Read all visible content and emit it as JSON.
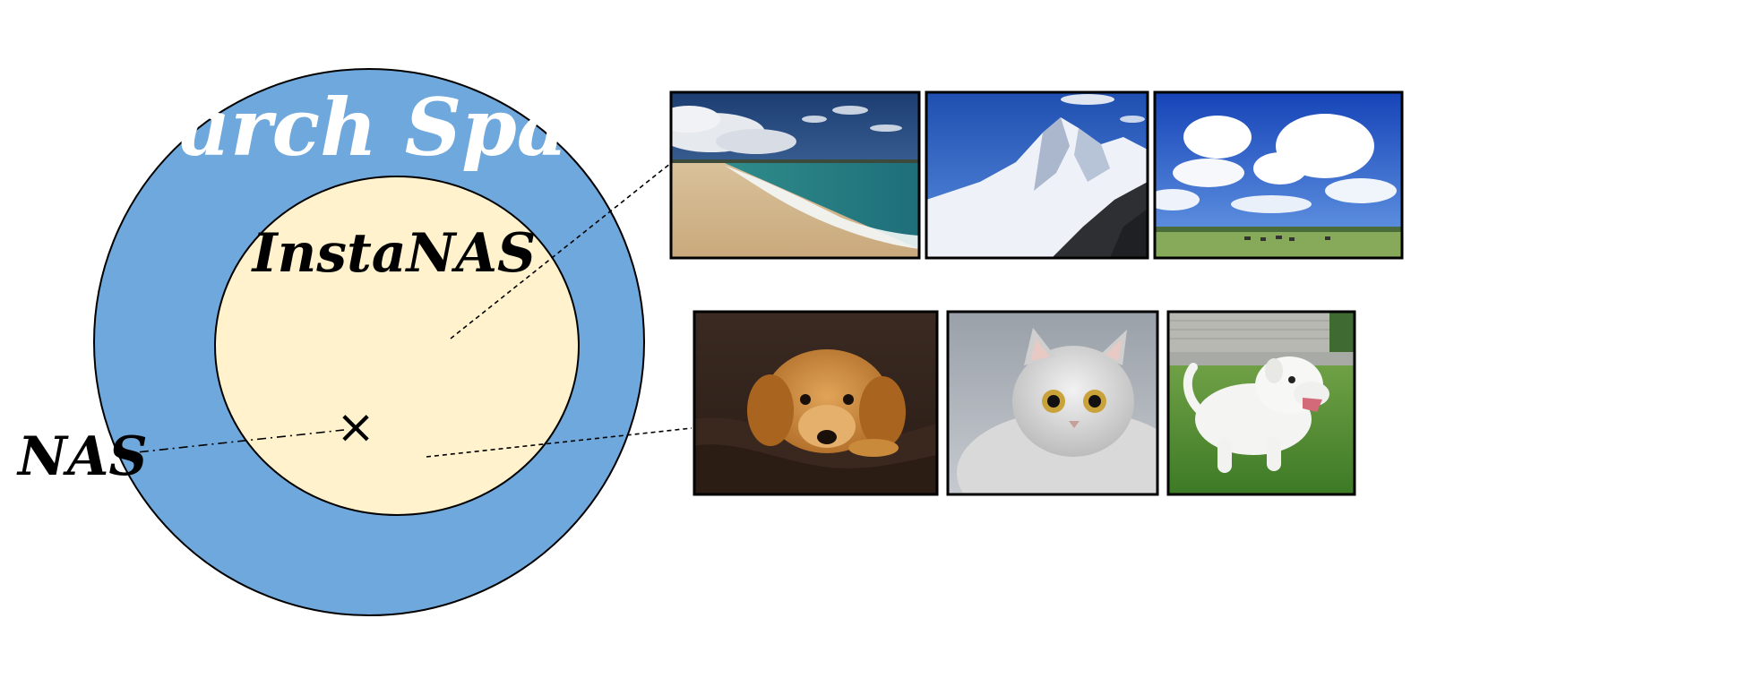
{
  "diagram": {
    "search_space_label": "Search Space",
    "instanas_label": "InstaNAS",
    "nas_label": "NAS",
    "nas_marker_glyph": "×",
    "colors": {
      "search_space_fill": "#6fa8dc",
      "instanas_fill": "#fff2cc",
      "outline": "#000000"
    }
  },
  "image_groups": [
    {
      "name": "landscapes",
      "images": [
        "beach-photo",
        "snowy-mountain-photo",
        "cloudy-sky-field-photo"
      ]
    },
    {
      "name": "animals",
      "images": [
        "golden-puppy-photo",
        "white-kitten-photo",
        "white-puppy-photo"
      ]
    }
  ]
}
